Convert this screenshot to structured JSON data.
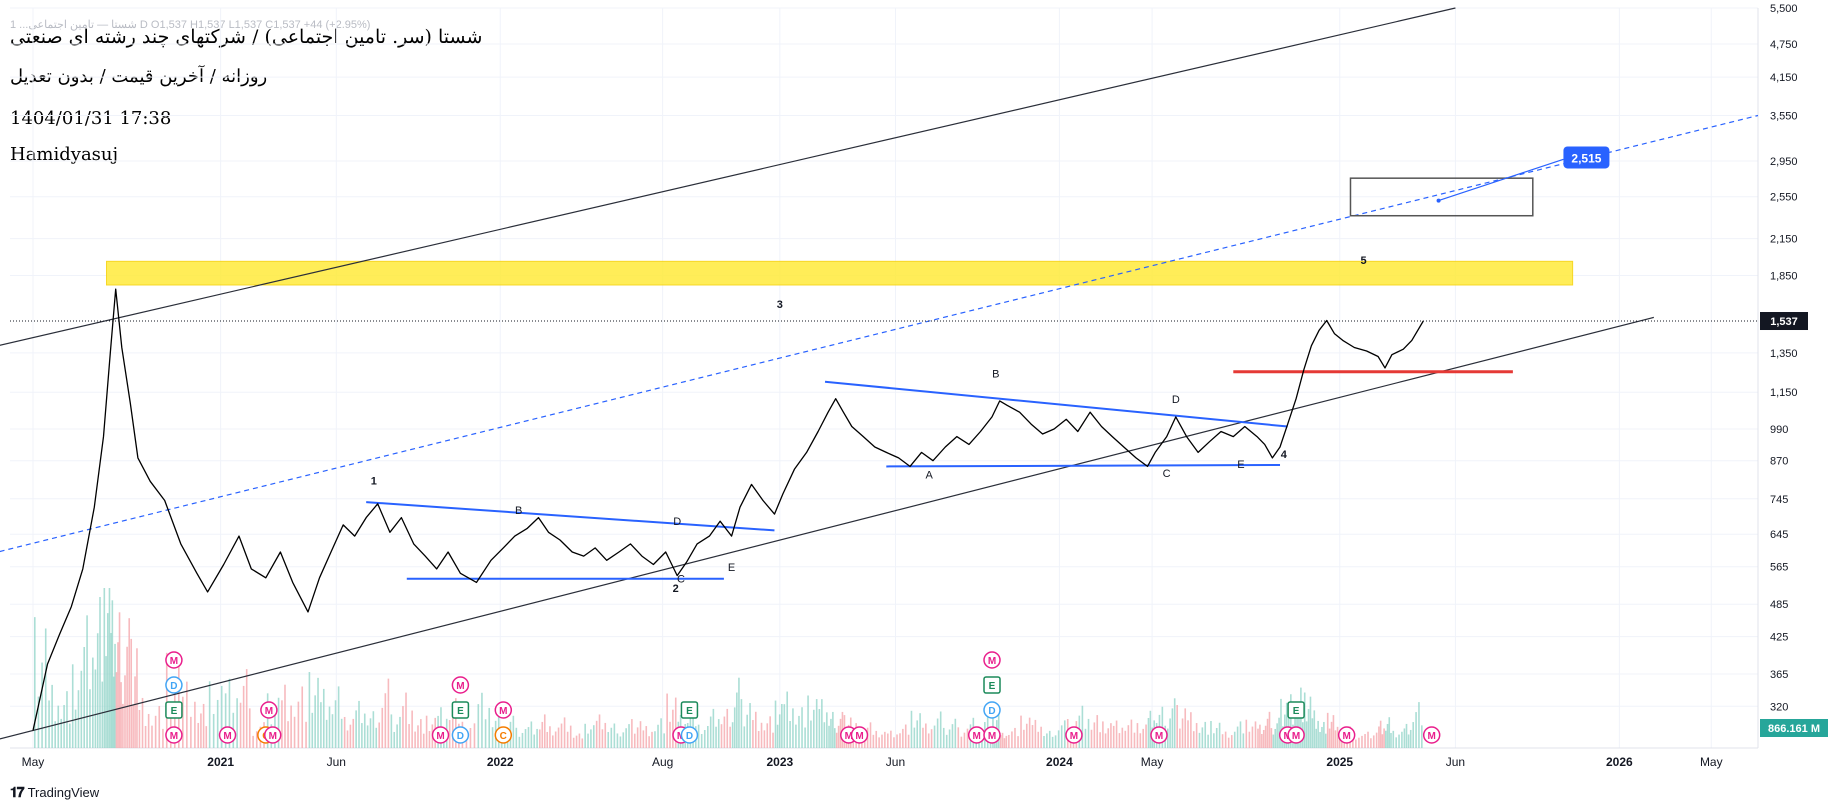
{
  "header": {
    "symbol_line": "1 ...‌شستا — تامین اجتماعی  D  O1,537  H1,537  L1,537  C1,537  +44 (+2.95%)",
    "title": "شستا (سر. تامین اجتماعی) / شرکتهای چند رشته ای صنعتی",
    "subtitle": "روزانه / آخرین قیمت / بدون تعدیل",
    "datetime": "1404/01/31 17:38",
    "author": "Hamidyasuj"
  },
  "brand": {
    "logo": "𝟏𝟕",
    "name": "TradingView"
  },
  "colors": {
    "price": "#000000",
    "trend_blue": "#2962ff",
    "support_red": "#e53935",
    "resistance_zone": "#ffeb3b",
    "channel": "#2a2e39",
    "volume_up": "#8fd3c7",
    "volume_down": "#f4a3a8",
    "event_m": "#e91e8c",
    "event_d": "#42a5f5",
    "event_e": "#1b8a5a",
    "event_c": "#f57c00",
    "target_label": "#2962ff"
  },
  "chart_data": {
    "type": "line",
    "scale": "log",
    "title": "شستا (سر. تامین اجتماعی) / شرکتهای چند رشته ای صنعتی",
    "timeframe": "Daily",
    "ylim": [
      270,
      5500
    ],
    "xlim": [
      "2020-04-01",
      "2026-07-01"
    ],
    "grid": true,
    "x_ticks": [
      {
        "t": "2020-05-01",
        "label": "May"
      },
      {
        "t": "2021-01-01",
        "label": "2021"
      },
      {
        "t": "2021-06-01",
        "label": "Jun"
      },
      {
        "t": "2022-01-01",
        "label": "2022"
      },
      {
        "t": "2022-08-01",
        "label": "Aug"
      },
      {
        "t": "2023-01-01",
        "label": "2023"
      },
      {
        "t": "2023-06-01",
        "label": "Jun"
      },
      {
        "t": "2024-01-01",
        "label": "2024"
      },
      {
        "t": "2024-05-01",
        "label": "May"
      },
      {
        "t": "2025-01-01",
        "label": "2025"
      },
      {
        "t": "2025-06-01",
        "label": "Jun"
      },
      {
        "t": "2026-01-01",
        "label": "2026"
      },
      {
        "t": "2026-05-01",
        "label": "May"
      }
    ],
    "y_ticks": [
      {
        "v": 5500,
        "label": "5,500"
      },
      {
        "v": 4750,
        "label": "4,750"
      },
      {
        "v": 4150,
        "label": "4,150"
      },
      {
        "v": 3550,
        "label": "3,550"
      },
      {
        "v": 2950,
        "label": "2,950"
      },
      {
        "v": 2550,
        "label": "2,550"
      },
      {
        "v": 2150,
        "label": "2,150"
      },
      {
        "v": 1850,
        "label": "1,850"
      },
      {
        "v": 1350,
        "label": "1,350"
      },
      {
        "v": 1150,
        "label": "1,150"
      },
      {
        "v": 990,
        "label": "990"
      },
      {
        "v": 870,
        "label": "870"
      },
      {
        "v": 745,
        "label": "745"
      },
      {
        "v": 645,
        "label": "645"
      },
      {
        "v": 565,
        "label": "565"
      },
      {
        "v": 485,
        "label": "485"
      },
      {
        "v": 425,
        "label": "425"
      },
      {
        "v": 365,
        "label": "365"
      },
      {
        "v": 320,
        "label": "320"
      }
    ],
    "last_price": {
      "v": 1537,
      "label": "1,537"
    },
    "volume_label": "866.161 M",
    "price_series": [
      [
        "2020-05-01",
        290
      ],
      [
        "2020-05-20",
        380
      ],
      [
        "2020-06-05",
        430
      ],
      [
        "2020-06-20",
        480
      ],
      [
        "2020-07-05",
        560
      ],
      [
        "2020-07-20",
        720
      ],
      [
        "2020-08-01",
        960
      ],
      [
        "2020-08-10",
        1350
      ],
      [
        "2020-08-17",
        1750
      ],
      [
        "2020-08-25",
        1380
      ],
      [
        "2020-09-05",
        1100
      ],
      [
        "2020-09-15",
        880
      ],
      [
        "2020-10-01",
        800
      ],
      [
        "2020-10-20",
        740
      ],
      [
        "2020-11-10",
        620
      ],
      [
        "2020-12-01",
        550
      ],
      [
        "2020-12-15",
        510
      ],
      [
        "2021-01-05",
        570
      ],
      [
        "2021-01-25",
        640
      ],
      [
        "2021-02-10",
        560
      ],
      [
        "2021-03-01",
        540
      ],
      [
        "2021-03-20",
        600
      ],
      [
        "2021-04-05",
        530
      ],
      [
        "2021-04-25",
        470
      ],
      [
        "2021-05-10",
        540
      ],
      [
        "2021-05-25",
        600
      ],
      [
        "2021-06-10",
        670
      ],
      [
        "2021-06-25",
        640
      ],
      [
        "2021-07-10",
        690
      ],
      [
        "2021-07-25",
        730
      ],
      [
        "2021-08-10",
        650
      ],
      [
        "2021-08-25",
        690
      ],
      [
        "2021-09-10",
        620
      ],
      [
        "2021-09-25",
        590
      ],
      [
        "2021-10-10",
        560
      ],
      [
        "2021-10-25",
        600
      ],
      [
        "2021-11-10",
        550
      ],
      [
        "2021-12-01",
        530
      ],
      [
        "2021-12-20",
        580
      ],
      [
        "2022-01-05",
        610
      ],
      [
        "2022-01-20",
        640
      ],
      [
        "2022-02-05",
        660
      ],
      [
        "2022-02-20",
        690
      ],
      [
        "2022-03-05",
        650
      ],
      [
        "2022-03-20",
        630
      ],
      [
        "2022-04-05",
        600
      ],
      [
        "2022-04-20",
        590
      ],
      [
        "2022-05-05",
        610
      ],
      [
        "2022-05-20",
        580
      ],
      [
        "2022-06-05",
        600
      ],
      [
        "2022-06-20",
        620
      ],
      [
        "2022-07-05",
        590
      ],
      [
        "2022-07-20",
        570
      ],
      [
        "2022-08-05",
        600
      ],
      [
        "2022-08-20",
        545
      ],
      [
        "2022-09-01",
        575
      ],
      [
        "2022-09-15",
        620
      ],
      [
        "2022-10-01",
        640
      ],
      [
        "2022-10-15",
        680
      ],
      [
        "2022-10-30",
        640
      ],
      [
        "2022-11-10",
        720
      ],
      [
        "2022-11-25",
        790
      ],
      [
        "2022-12-10",
        740
      ],
      [
        "2022-12-25",
        700
      ],
      [
        "2023-01-05",
        760
      ],
      [
        "2023-01-20",
        840
      ],
      [
        "2023-02-05",
        900
      ],
      [
        "2023-02-20",
        980
      ],
      [
        "2023-03-05",
        1060
      ],
      [
        "2023-03-15",
        1120
      ],
      [
        "2023-03-25",
        1060
      ],
      [
        "2023-04-05",
        1000
      ],
      [
        "2023-04-20",
        960
      ],
      [
        "2023-05-05",
        920
      ],
      [
        "2023-05-20",
        900
      ],
      [
        "2023-06-05",
        880
      ],
      [
        "2023-06-20",
        850
      ],
      [
        "2023-07-05",
        900
      ],
      [
        "2023-07-20",
        870
      ],
      [
        "2023-08-05",
        920
      ],
      [
        "2023-08-20",
        960
      ],
      [
        "2023-09-05",
        930
      ],
      [
        "2023-09-20",
        980
      ],
      [
        "2023-10-05",
        1040
      ],
      [
        "2023-10-15",
        1110
      ],
      [
        "2023-10-25",
        1090
      ],
      [
        "2023-11-10",
        1060
      ],
      [
        "2023-11-25",
        1010
      ],
      [
        "2023-12-10",
        970
      ],
      [
        "2023-12-25",
        990
      ],
      [
        "2024-01-10",
        1030
      ],
      [
        "2024-01-25",
        980
      ],
      [
        "2024-02-10",
        1060
      ],
      [
        "2024-02-25",
        1000
      ],
      [
        "2024-03-10",
        960
      ],
      [
        "2024-03-25",
        920
      ],
      [
        "2024-04-10",
        880
      ],
      [
        "2024-04-25",
        850
      ],
      [
        "2024-05-05",
        900
      ],
      [
        "2024-05-20",
        960
      ],
      [
        "2024-06-01",
        1040
      ],
      [
        "2024-06-15",
        960
      ],
      [
        "2024-06-30",
        900
      ],
      [
        "2024-07-15",
        940
      ],
      [
        "2024-07-30",
        980
      ],
      [
        "2024-08-15",
        960
      ],
      [
        "2024-08-30",
        1000
      ],
      [
        "2024-09-15",
        960
      ],
      [
        "2024-09-25",
        930
      ],
      [
        "2024-10-05",
        880
      ],
      [
        "2024-10-15",
        920
      ],
      [
        "2024-10-25",
        1010
      ],
      [
        "2024-11-05",
        1120
      ],
      [
        "2024-11-15",
        1260
      ],
      [
        "2024-11-25",
        1390
      ],
      [
        "2024-12-05",
        1480
      ],
      [
        "2024-12-15",
        1540
      ],
      [
        "2024-12-25",
        1460
      ],
      [
        "2025-01-05",
        1420
      ],
      [
        "2025-01-20",
        1380
      ],
      [
        "2025-02-05",
        1360
      ],
      [
        "2025-02-20",
        1330
      ],
      [
        "2025-03-01",
        1270
      ],
      [
        "2025-03-10",
        1340
      ],
      [
        "2025-03-25",
        1370
      ],
      [
        "2025-04-05",
        1420
      ],
      [
        "2025-04-20",
        1537
      ]
    ],
    "channel_lines": [
      {
        "name": "channel-upper-line",
        "from": [
          "2019-12-15",
          1300
        ],
        "to": [
          "2025-06-01",
          5500
        ]
      },
      {
        "name": "channel-lower-line",
        "from": [
          "2020-02-01",
          270
        ],
        "to": [
          "2026-02-15",
          1560
        ]
      }
    ],
    "dashed_line": {
      "from": [
        "2020-01-10",
        570
      ],
      "to": [
        "2026-07-01",
        3550
      ]
    },
    "trend_lines": [
      {
        "name": "triangle-1-upper",
        "from": [
          "2021-07-10",
          735
        ],
        "to": [
          "2022-12-25",
          655
        ],
        "color": "#2962ff"
      },
      {
        "name": "triangle-1-lower",
        "from": [
          "2021-09-01",
          538
        ],
        "to": [
          "2022-10-20",
          538
        ],
        "color": "#2962ff"
      },
      {
        "name": "triangle-2-upper",
        "from": [
          "2023-03-01",
          1200
        ],
        "to": [
          "2024-10-25",
          1000
        ],
        "color": "#2962ff"
      },
      {
        "name": "triangle-2-lower",
        "from": [
          "2023-05-20",
          850
        ],
        "to": [
          "2024-10-15",
          855
        ],
        "color": "#2962ff"
      },
      {
        "name": "support-red",
        "from": [
          "2024-08-15",
          1250
        ],
        "to": [
          "2025-08-15",
          1250
        ],
        "color": "#e53935"
      }
    ],
    "resistance_zone": {
      "from": "2020-08-05",
      "to": "2025-11-01",
      "low": 1780,
      "high": 1960
    },
    "target_box": {
      "from": "2025-01-15",
      "to": "2025-09-10",
      "low": 2360,
      "high": 2750
    },
    "target_arrow": {
      "from": [
        "2025-05-10",
        2510
      ],
      "to": [
        "2025-10-20",
        2970
      ]
    },
    "target_label": {
      "t": "2025-10-20",
      "v": 2980,
      "label": "2,515"
    },
    "wave_labels": [
      {
        "label": "1",
        "t": "2021-07-20",
        "v": 790
      },
      {
        "label": "2",
        "t": "2022-08-18",
        "v": 510
      },
      {
        "label": "3",
        "t": "2023-01-01",
        "v": 1620
      },
      {
        "label": "4",
        "t": "2024-10-20",
        "v": 880
      },
      {
        "label": "5",
        "t": "2025-02-01",
        "v": 1940
      }
    ],
    "pattern_labels": [
      {
        "label": "B",
        "t": "2022-01-25",
        "v": 700
      },
      {
        "label": "D",
        "t": "2022-08-20",
        "v": 670
      },
      {
        "label": "C",
        "t": "2022-08-25",
        "v": 530
      },
      {
        "label": "E",
        "t": "2022-10-30",
        "v": 555
      },
      {
        "label": "B",
        "t": "2023-10-10",
        "v": 1220
      },
      {
        "label": "D",
        "t": "2024-06-01",
        "v": 1100
      },
      {
        "label": "A",
        "t": "2023-07-15",
        "v": 810
      },
      {
        "label": "C",
        "t": "2024-05-20",
        "v": 815
      },
      {
        "label": "E",
        "t": "2024-08-25",
        "v": 845
      }
    ],
    "event_markers": [
      {
        "t": "2020-11-01",
        "type": "M",
        "row": 0
      },
      {
        "t": "2020-11-01",
        "type": "E",
        "row": 1
      },
      {
        "t": "2020-11-01",
        "type": "D",
        "row": 2
      },
      {
        "t": "2020-11-01",
        "type": "M",
        "row": 3
      },
      {
        "t": "2021-01-10",
        "type": "M",
        "row": 0
      },
      {
        "t": "2021-03-01",
        "type": "C",
        "row": 0
      },
      {
        "t": "2021-03-10",
        "type": "M",
        "row": 0
      },
      {
        "t": "2021-03-05",
        "type": "M",
        "row": 1
      },
      {
        "t": "2021-10-15",
        "type": "M",
        "row": 0
      },
      {
        "t": "2021-11-10",
        "type": "D",
        "row": 0
      },
      {
        "t": "2021-11-10",
        "type": "E",
        "row": 1
      },
      {
        "t": "2021-11-10",
        "type": "M",
        "row": 2
      },
      {
        "t": "2022-01-05",
        "type": "C",
        "row": 0
      },
      {
        "t": "2022-01-05",
        "type": "M",
        "row": 1
      },
      {
        "t": "2022-08-25",
        "type": "M",
        "row": 0
      },
      {
        "t": "2022-09-05",
        "type": "D",
        "row": 0
      },
      {
        "t": "2022-09-05",
        "type": "E",
        "row": 1
      },
      {
        "t": "2023-04-01",
        "type": "M",
        "row": 0
      },
      {
        "t": "2023-04-15",
        "type": "M",
        "row": 0
      },
      {
        "t": "2023-09-15",
        "type": "M",
        "row": 0
      },
      {
        "t": "2023-10-05",
        "type": "M",
        "row": 0
      },
      {
        "t": "2023-10-05",
        "type": "D",
        "row": 1
      },
      {
        "t": "2023-10-05",
        "type": "E",
        "row": 2
      },
      {
        "t": "2023-10-05",
        "type": "M",
        "row": 3
      },
      {
        "t": "2024-01-20",
        "type": "M",
        "row": 0
      },
      {
        "t": "2024-05-10",
        "type": "M",
        "row": 0
      },
      {
        "t": "2024-10-25",
        "type": "M",
        "row": 0
      },
      {
        "t": "2024-11-05",
        "type": "M",
        "row": 0
      },
      {
        "t": "2024-11-05",
        "type": "E",
        "row": 1
      },
      {
        "t": "2025-01-10",
        "type": "M",
        "row": 0
      },
      {
        "t": "2025-05-01",
        "type": "M",
        "row": 0
      }
    ]
  }
}
